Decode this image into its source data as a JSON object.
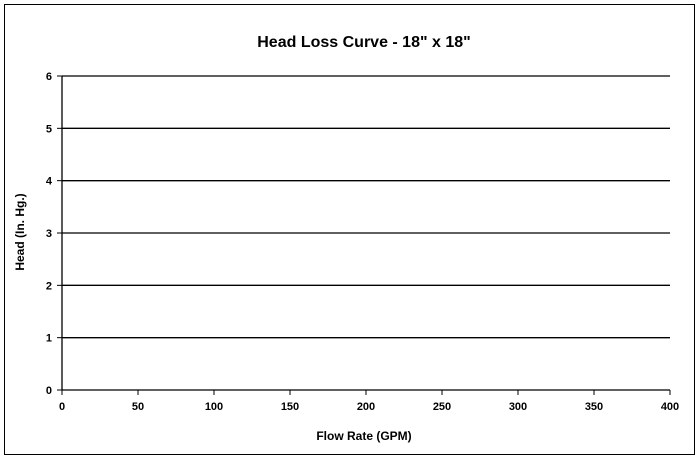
{
  "chart_data": {
    "type": "line",
    "title": "Head Loss Curve - 18\" x 18\"",
    "xlabel": "Flow Rate (GPM)",
    "ylabel": "Head (In. Hg.)",
    "xlim": [
      0,
      400
    ],
    "ylim": [
      0,
      6
    ],
    "x_ticks": [
      "0",
      "50",
      "100",
      "150",
      "200",
      "250",
      "300",
      "350",
      "400"
    ],
    "y_ticks": [
      "0",
      "1",
      "2",
      "3",
      "4",
      "5",
      "6"
    ],
    "grid": "horizontal",
    "legend": "none",
    "series": []
  },
  "colors": {
    "axis": "#000000",
    "gridline": "#000000",
    "background": "#ffffff"
  }
}
